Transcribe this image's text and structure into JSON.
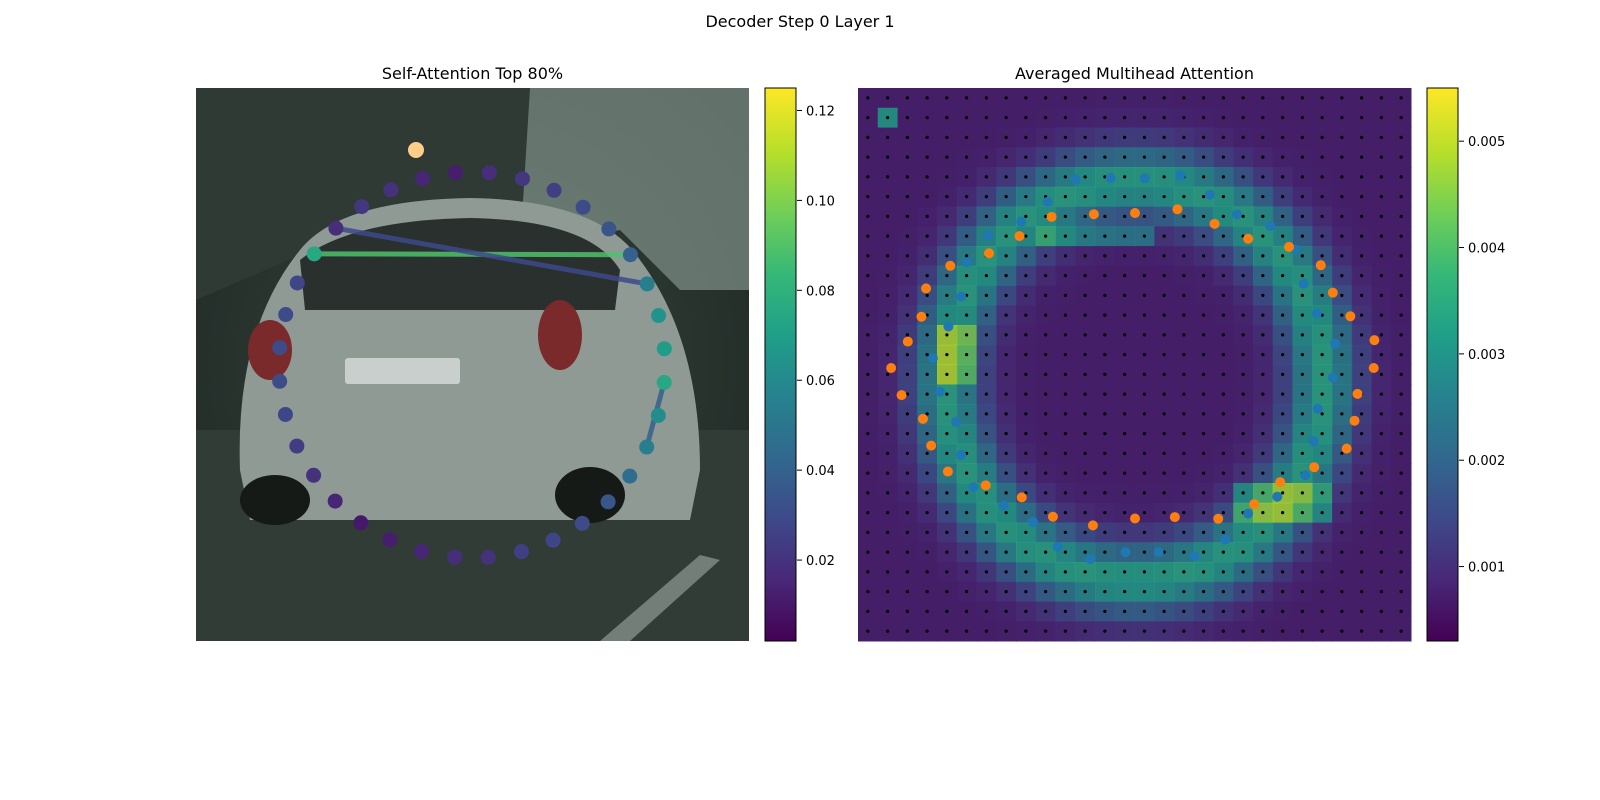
{
  "suptitle": "Decoder Step 0 Layer 1",
  "panels": [
    {
      "title": "Self-Attention Top 80%"
    },
    {
      "title": "Averaged Multihead Attention"
    }
  ],
  "colors": {
    "viridis": [
      "#440154",
      "#482878",
      "#3e4989",
      "#31688e",
      "#26828e",
      "#1f9e89",
      "#35b779",
      "#6ece58",
      "#b5de2b",
      "#fde725"
    ],
    "query_points": "#1f77b4",
    "reference_points": "#ff7f0e",
    "grid_dots": "#000000"
  },
  "chart_data": [
    {
      "type": "scatter",
      "title": "Self-Attention Top 80%",
      "description_of_points": "ring of 36 query points colored by attention weight",
      "weights": [
        0.018,
        0.022,
        0.025,
        0.03,
        0.035,
        0.04,
        0.055,
        0.065,
        0.07,
        0.075,
        0.062,
        0.055,
        0.045,
        0.035,
        0.03,
        0.028,
        0.025,
        0.02,
        0.018,
        0.015,
        0.012,
        0.01,
        0.015,
        0.02,
        0.024,
        0.028,
        0.03,
        0.03,
        0.03,
        0.028,
        0.076,
        0.018,
        0.022,
        0.02,
        0.015,
        0.012
      ],
      "attention_lines": [
        {
          "from": 5,
          "to": 30,
          "weight": 0.09
        },
        {
          "from": 31,
          "to": 6,
          "weight": 0.03
        },
        {
          "from": 9,
          "to": 11,
          "weight": 0.04
        }
      ],
      "colorbar": {
        "ticks": [
          0.02,
          0.04,
          0.06,
          0.08,
          0.1,
          0.12
        ],
        "tick_labels": [
          "0.02",
          "0.04",
          "0.06",
          "0.08",
          "0.10",
          "0.12"
        ],
        "range": [
          0.002,
          0.125
        ]
      }
    },
    {
      "type": "heatmap",
      "title": "Averaged Multihead Attention",
      "colorbar": {
        "ticks": [
          0.001,
          0.002,
          0.003,
          0.004,
          0.005
        ],
        "tick_labels": [
          "0.001",
          "0.002",
          "0.003",
          "0.004",
          "0.005"
        ],
        "range": [
          0.0003,
          0.0055
        ]
      },
      "series": [
        {
          "marker": "blue dots",
          "count": 36
        },
        {
          "marker": "orange dots",
          "count": 36
        }
      ]
    }
  ]
}
